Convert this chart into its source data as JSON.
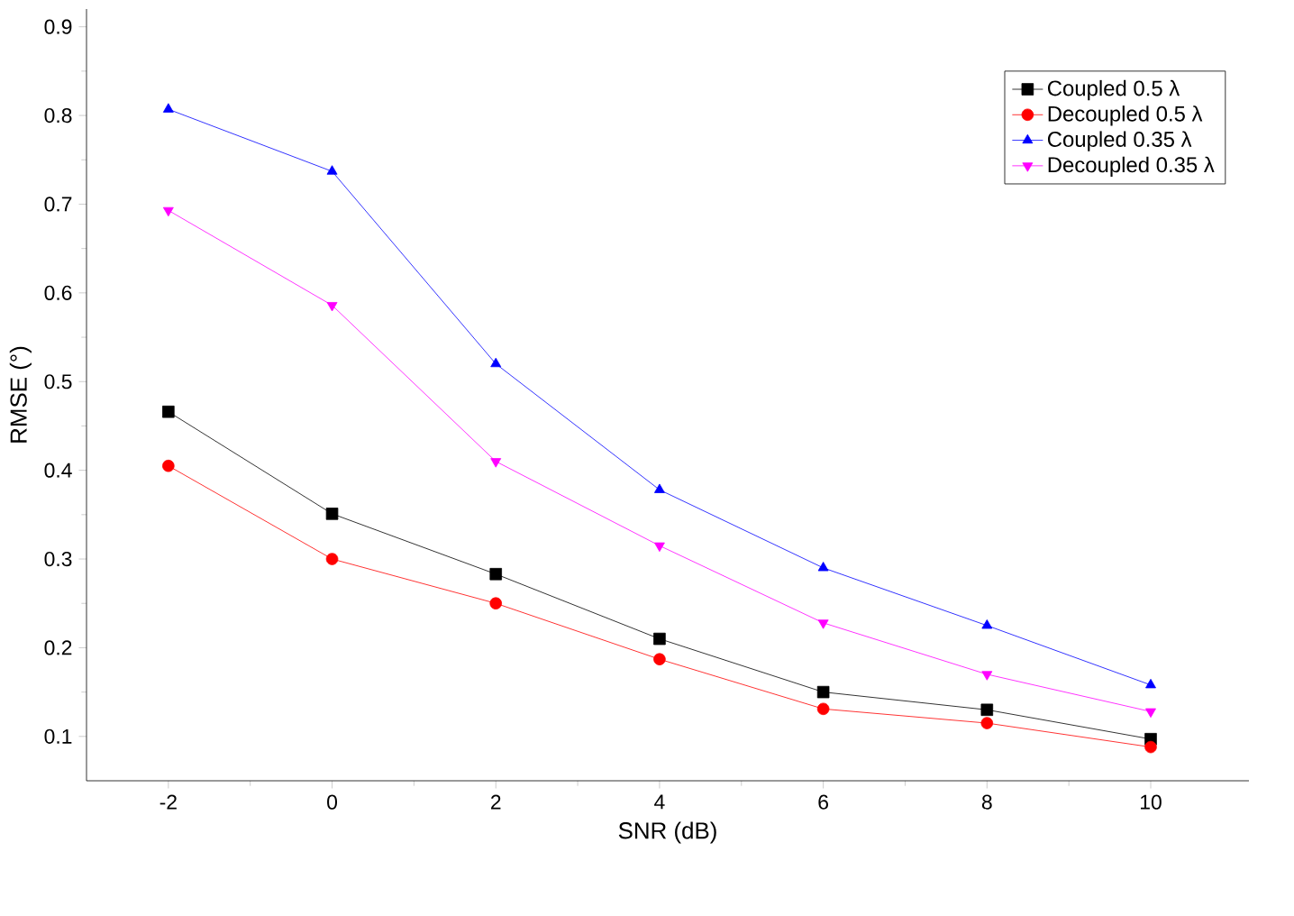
{
  "chart_data": {
    "type": "line",
    "xlabel": "SNR (dB)",
    "ylabel": "RMSE (°)",
    "x": [
      -2,
      0,
      2,
      4,
      6,
      8,
      10
    ],
    "series": [
      {
        "name": "Coupled 0.5 λ",
        "color": "#000000",
        "marker": "square",
        "values": [
          0.466,
          0.351,
          0.283,
          0.21,
          0.15,
          0.13,
          0.097
        ]
      },
      {
        "name": "Decoupled 0.5 λ",
        "color": "#ff0000",
        "marker": "circle",
        "values": [
          0.405,
          0.3,
          0.25,
          0.187,
          0.131,
          0.115,
          0.088
        ]
      },
      {
        "name": "Coupled 0.35 λ",
        "color": "#0000ff",
        "marker": "triangle",
        "values": [
          0.807,
          0.737,
          0.52,
          0.378,
          0.29,
          0.225,
          0.158
        ]
      },
      {
        "name": "Decoupled 0.35 λ",
        "color": "#ff00ff",
        "marker": "triangle down",
        "values": [
          0.693,
          0.586,
          0.41,
          0.315,
          0.228,
          0.17,
          0.128
        ]
      }
    ],
    "xlim": [
      -3,
      11.2
    ],
    "ylim": [
      0.05,
      0.92
    ],
    "xticks": [
      -2,
      0,
      2,
      4,
      6,
      8,
      10
    ],
    "yticks": [
      0.1,
      0.2,
      0.3,
      0.4,
      0.5,
      0.6,
      0.7,
      0.8,
      0.9
    ],
    "legend": "top right",
    "grid": false,
    "line_style": "solid"
  }
}
